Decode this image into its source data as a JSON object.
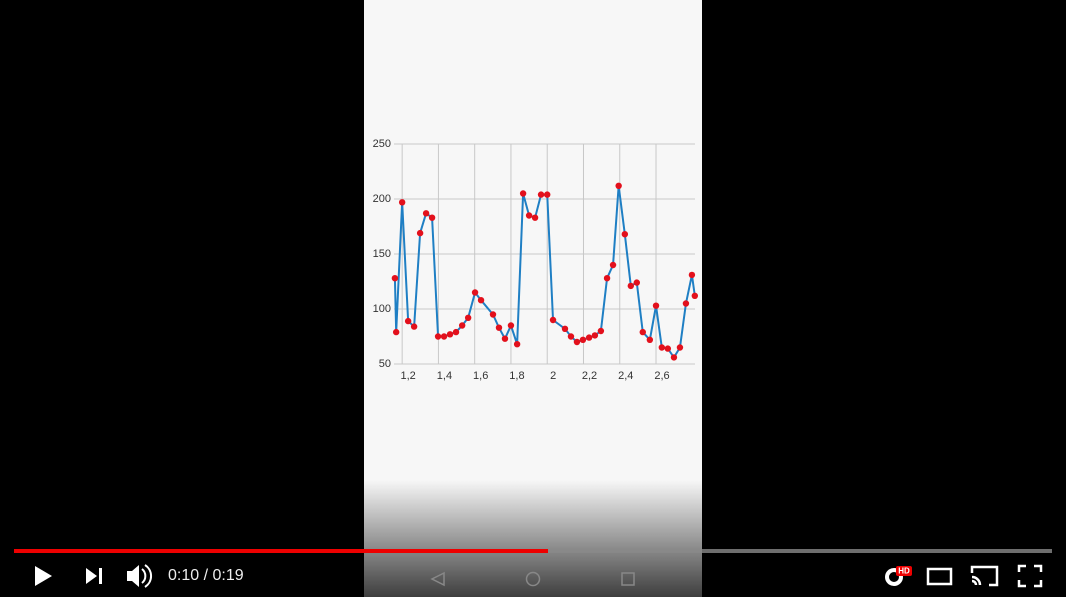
{
  "chart_data": {
    "type": "line",
    "x": [
      1.16,
      1.167,
      1.2,
      1.233,
      1.266,
      1.299,
      1.332,
      1.365,
      1.398,
      1.431,
      1.464,
      1.497,
      1.531,
      1.564,
      1.602,
      1.635,
      1.701,
      1.734,
      1.767,
      1.8,
      1.834,
      1.867,
      1.9,
      1.933,
      1.966,
      2.0,
      2.032,
      2.098,
      2.131,
      2.164,
      2.197,
      2.231,
      2.263,
      2.296,
      2.33,
      2.363,
      2.394,
      2.428,
      2.461,
      2.494,
      2.527,
      2.566,
      2.6,
      2.632,
      2.665,
      2.699,
      2.732,
      2.765,
      2.798,
      2.814
    ],
    "series": [
      {
        "color": "#1f7fc4",
        "marker_color": "#e3101c",
        "values": [
          128,
          79,
          197,
          89,
          84,
          169,
          187,
          183,
          75,
          75,
          77,
          79,
          85,
          92,
          115,
          108,
          95,
          83,
          73,
          85,
          68,
          205,
          185,
          183,
          204,
          204,
          90,
          82,
          75,
          70,
          72,
          74,
          76,
          80,
          128,
          140,
          212,
          168,
          121,
          124,
          79,
          72,
          103,
          65,
          64,
          56,
          65,
          105,
          131,
          112
        ]
      }
    ],
    "xlim": [
      1.155,
      2.815
    ],
    "xticks": [
      {
        "value": 1.2,
        "label": "1,2"
      },
      {
        "value": 1.4,
        "label": "1,4"
      },
      {
        "value": 1.6,
        "label": "1,6"
      },
      {
        "value": 1.8,
        "label": "1,8"
      },
      2,
      {
        "value": 2.2,
        "label": "2,2"
      },
      {
        "value": 2.4,
        "label": "2,4"
      },
      {
        "value": 2.6,
        "label": "2,6"
      }
    ],
    "ylim": [
      50,
      250
    ],
    "yticks": [
      50,
      100,
      150,
      200,
      250
    ],
    "grid": true
  },
  "player": {
    "time": "0:10 / 0:19",
    "hd_badge": "HD"
  }
}
